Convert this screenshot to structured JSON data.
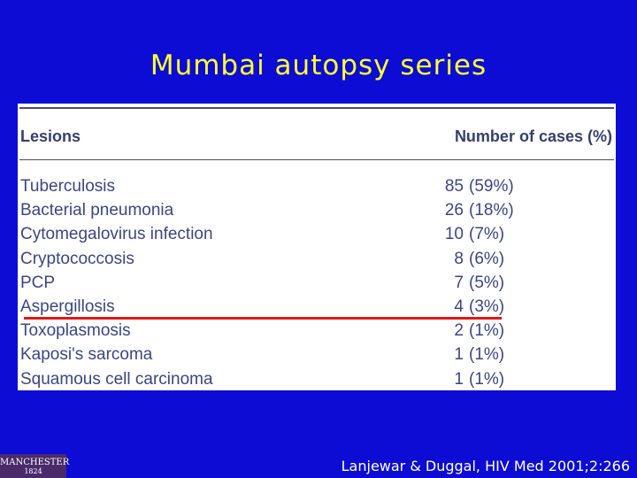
{
  "title": "Mumbai autopsy series",
  "table": {
    "header": [
      "Lesions",
      "Number of cases (%)"
    ],
    "rows": [
      [
        "Tuberculosis",
        "85",
        "(59%)"
      ],
      [
        "Bacterial pneumonia",
        "26",
        "(18%)"
      ],
      [
        "Cytomegalovirus infection",
        "10",
        "(7%)"
      ],
      [
        "Cryptococcosis",
        "8",
        "(6%)"
      ],
      [
        "PCP",
        "7",
        "(5%)"
      ],
      [
        "Aspergillosis",
        "4",
        "(3%)"
      ],
      [
        "Toxoplasmosis",
        "2",
        "(1%)"
      ],
      [
        "Kaposi's sarcoma",
        "1",
        "(1%)"
      ],
      [
        "Squamous cell carcinoma",
        "1",
        "(1%)"
      ]
    ]
  },
  "logo": [
    "MANCHESTER",
    "1824"
  ],
  "citation": "Lanjewar & Duggal, HIV Med 2001;2:266"
}
